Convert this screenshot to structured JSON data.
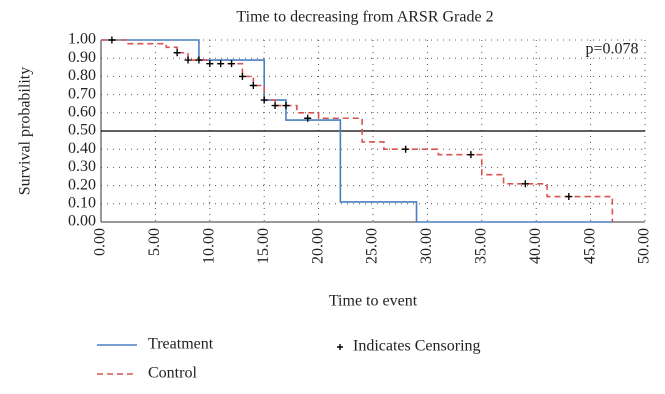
{
  "chart_data": {
    "type": "line",
    "title": "Time to decreasing from ARSR Grade 2",
    "xlabel": "Time to event",
    "ylabel": "Survival probability",
    "annotation": "p=0.078",
    "xlim": [
      0,
      50
    ],
    "ylim": [
      0,
      1
    ],
    "xticks": [
      {
        "value": 0,
        "label": "0.00"
      },
      {
        "value": 5,
        "label": "5.00"
      },
      {
        "value": 10,
        "label": "10.00"
      },
      {
        "value": 15,
        "label": "15.00"
      },
      {
        "value": 20,
        "label": "20.00"
      },
      {
        "value": 25,
        "label": "25.00"
      },
      {
        "value": 30,
        "label": "30.00"
      },
      {
        "value": 35,
        "label": "35.00"
      },
      {
        "value": 40,
        "label": "40.00"
      },
      {
        "value": 45,
        "label": "45.00"
      },
      {
        "value": 50,
        "label": "50.00"
      }
    ],
    "yticks": [
      {
        "value": 0,
        "label": "0.00"
      },
      {
        "value": 0.1,
        "label": "0.10"
      },
      {
        "value": 0.2,
        "label": "0.20"
      },
      {
        "value": 0.3,
        "label": "0.30"
      },
      {
        "value": 0.4,
        "label": "0.40"
      },
      {
        "value": 0.5,
        "label": "0.50"
      },
      {
        "value": 0.6,
        "label": "0.60"
      },
      {
        "value": 0.7,
        "label": "0.70"
      },
      {
        "value": 0.8,
        "label": "0.80"
      },
      {
        "value": 0.9,
        "label": "0.90"
      },
      {
        "value": 1,
        "label": "1.00"
      }
    ],
    "grid": true,
    "reference_line": 0.5,
    "series": [
      {
        "name": "Treatment",
        "color": "#4a7fc0",
        "style": "solid",
        "x": [
          0,
          9,
          9,
          15,
          15,
          17,
          17,
          22,
          22,
          29,
          29,
          47
        ],
        "values": [
          1,
          1,
          0.89,
          0.89,
          0.67,
          0.67,
          0.56,
          0.56,
          0.11,
          0.11,
          0,
          0
        ]
      },
      {
        "name": "Control",
        "color": "#d9534f",
        "style": "dashed",
        "x": [
          0,
          2.5,
          2.5,
          6,
          6,
          7,
          7,
          8,
          8,
          10,
          10,
          13,
          13,
          14,
          14,
          15,
          15,
          16,
          16,
          18,
          18,
          20,
          20,
          24,
          24,
          26,
          26,
          31,
          31,
          35,
          35,
          37,
          37,
          41,
          41,
          47,
          47
        ],
        "values": [
          1,
          1,
          0.98,
          0.98,
          0.96,
          0.96,
          0.93,
          0.93,
          0.89,
          0.89,
          0.87,
          0.87,
          0.8,
          0.8,
          0.75,
          0.75,
          0.67,
          0.67,
          0.64,
          0.64,
          0.6,
          0.6,
          0.57,
          0.57,
          0.44,
          0.44,
          0.4,
          0.4,
          0.37,
          0.37,
          0.26,
          0.26,
          0.21,
          0.21,
          0.14,
          0.14,
          0
        ]
      },
      {
        "name": "Indicates Censoring",
        "color": "#000000",
        "style": "marker",
        "x": [
          1,
          7,
          8,
          9,
          10,
          11,
          12,
          13,
          14,
          15,
          16,
          17,
          19,
          28,
          34,
          39,
          43
        ],
        "values": [
          1,
          0.93,
          0.89,
          0.89,
          0.87,
          0.87,
          0.87,
          0.8,
          0.75,
          0.67,
          0.64,
          0.64,
          0.57,
          0.4,
          0.37,
          0.21,
          0.14
        ]
      }
    ]
  }
}
